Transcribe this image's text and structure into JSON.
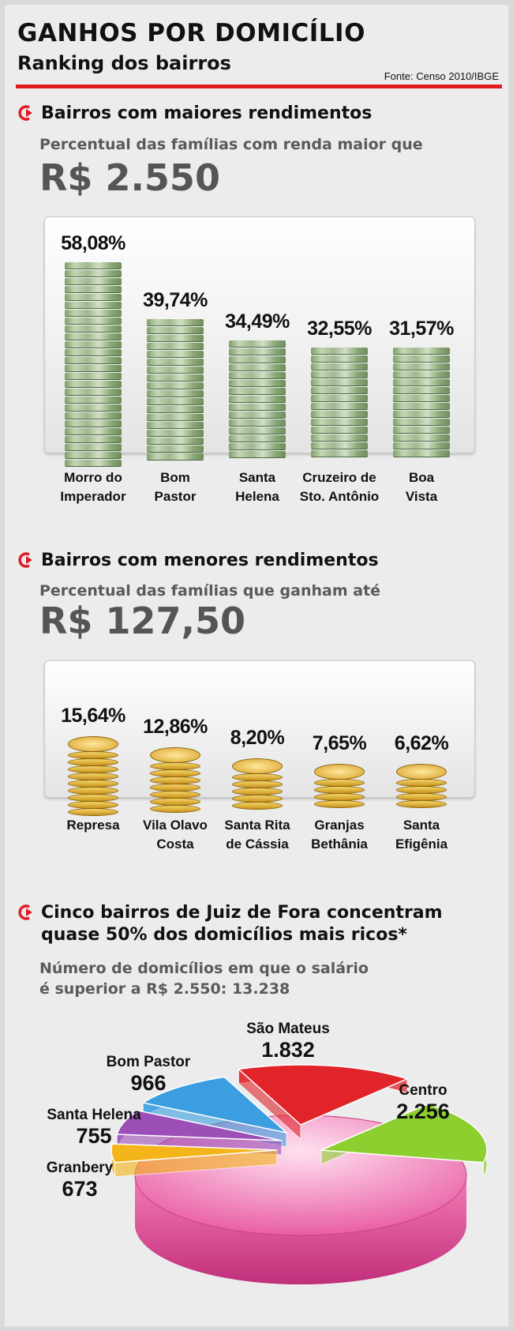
{
  "header": {
    "title": "GANHOS POR DOMICÍLIO",
    "subtitle": "Ranking dos bairros",
    "source": "Fonte: Censo 2010/IBGE"
  },
  "section1": {
    "heading": "Bairros com maiores rendimentos",
    "subheading": "Percentual das famílias com renda maior que",
    "value": "R$ 2.550",
    "pct_labels": [
      "58,08%",
      "39,74%",
      "34,49%",
      "32,55%",
      "31,57%"
    ],
    "cat_lines": [
      [
        "Morro do",
        "Imperador"
      ],
      [
        "Bom",
        "Pastor"
      ],
      [
        "Santa",
        "Helena"
      ],
      [
        "Cruzeiro de",
        "Sto. Antônio"
      ],
      [
        "Boa",
        "Vista"
      ]
    ]
  },
  "section2": {
    "heading": "Bairros com menores rendimentos",
    "subheading": "Percentual das famílias que ganham até",
    "value": "R$ 127,50",
    "pct_labels": [
      "15,64%",
      "12,86%",
      "8,20%",
      "7,65%",
      "6,62%"
    ],
    "cat_lines": [
      [
        "Represa",
        ""
      ],
      [
        "Vila Olavo",
        "Costa"
      ],
      [
        "Santa Rita",
        "de Cássia"
      ],
      [
        "Granjas",
        "Bethânia"
      ],
      [
        "Santa",
        "Efigênia"
      ]
    ]
  },
  "section3": {
    "heading_line1": "Cinco bairros de Juiz de Fora concentram",
    "heading_line2": "quase 50% dos domicílios mais ricos*",
    "sub_line1": "Número de domicílios em que o salário",
    "sub_line2": "é superior a R$ 2.550: 13.238",
    "slice_labels": [
      {
        "name": "São Mateus",
        "value": "1.832"
      },
      {
        "name": "Centro",
        "value": "2.256"
      },
      {
        "name": "Bom Pastor",
        "value": "966"
      },
      {
        "name": "Santa Helena",
        "value": "755"
      },
      {
        "name": "Granbery",
        "value": "673"
      }
    ]
  },
  "colors": {
    "accent_red": "#e31b23",
    "pie_sao_mateus": "#e0242a",
    "pie_centro": "#8ccf2e",
    "pie_bom_pastor": "#3a9ee0",
    "pie_santa_helena": "#9b4fb7",
    "pie_granbery": "#f3b51a",
    "pie_others": "#e64c9b"
  },
  "icons": {
    "section_arrow": "red-circle-arrow-icon",
    "bills": "money-stack-icon",
    "coins": "coin-stack-icon"
  },
  "chart_data": [
    {
      "type": "bar",
      "title": "Bairros com maiores rendimentos",
      "categories": [
        "Morro do Imperador",
        "Bom Pastor",
        "Santa Helena",
        "Cruzeiro de Sto. Antônio",
        "Boa Vista"
      ],
      "values": [
        58.08,
        39.74,
        34.49,
        32.55,
        31.57
      ],
      "ylabel": "%"
    },
    {
      "type": "bar",
      "title": "Bairros com menores rendimentos",
      "categories": [
        "Represa",
        "Vila Olavo Costa",
        "Santa Rita de Cássia",
        "Granjas Bethânia",
        "Santa Efigênia"
      ],
      "values": [
        15.64,
        12.86,
        8.2,
        7.65,
        6.62
      ],
      "ylabel": "%"
    },
    {
      "type": "pie",
      "title": "Cinco bairros de Juiz de Fora concentram quase 50% dos domicílios mais ricos*",
      "total": 13238,
      "categories": [
        "São Mateus",
        "Centro",
        "Bom Pastor",
        "Santa Helena",
        "Granbery"
      ],
      "values": [
        1832,
        2256,
        966,
        755,
        673
      ]
    }
  ]
}
